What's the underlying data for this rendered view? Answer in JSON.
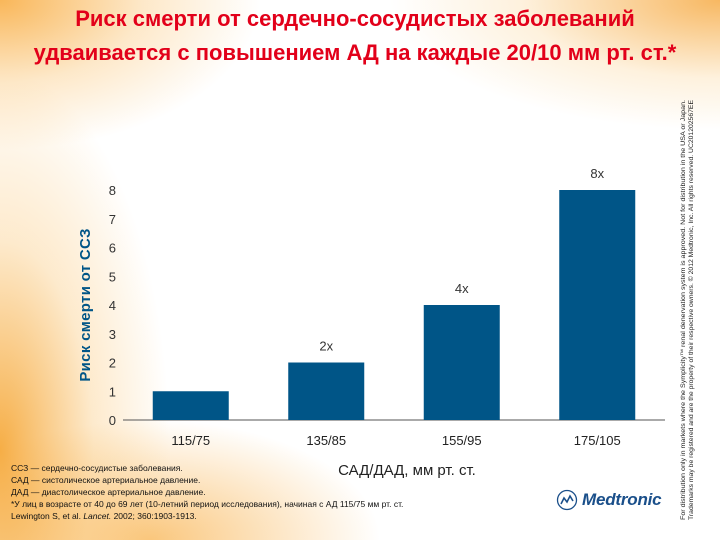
{
  "title": "Риск смерти от сердечно-сосудистых заболеваний удваивается с повышением АД на каждые 20/10 мм рт. ст.*",
  "side_note": {
    "line1": "For distribution only in markets where the Symplicity™ renal denervation system is approved. Not for distribution in the USA or Japan.",
    "line2": "Trademarks may be registered and are the property of their respective owners. © 2012 Medtronic, Inc. All rights reserved. UC201202567EE"
  },
  "footnotes": {
    "l1": "ССЗ — сердечно-сосудистые заболевания.",
    "l2": "САД — систолическое артериальное давление.",
    "l3": "ДАД — диастолическое артериальное давление.",
    "l4": "*У лиц в возрасте от 40 до 69 лет (10-летний период исследования), начиная с АД 115/75 мм рт. ст.",
    "l5_authors": "Lewington S, et al.",
    "l5_journal": "Lancet.",
    "l5_ref": "2002; 360:1903-1913."
  },
  "logo": {
    "text": "Medtronic"
  },
  "colors": {
    "title": "#e2001a",
    "bar": "#005587",
    "ytitle": "#005587",
    "axis": "#555555"
  },
  "chart_data": {
    "type": "bar",
    "categories": [
      "115/75",
      "135/85",
      "155/95",
      "175/105"
    ],
    "values": [
      1,
      2,
      4,
      8
    ],
    "data_labels": [
      "",
      "2x",
      "4x",
      "8x"
    ],
    "ylabel": "Риск смерти от ССЗ",
    "xlabel": "САД/ДАД, мм рт. ст.",
    "yticks": [
      0,
      1,
      2,
      3,
      4,
      5,
      6,
      7,
      8
    ],
    "ylim": [
      0,
      8.6
    ],
    "grid": false,
    "legend": "none"
  }
}
